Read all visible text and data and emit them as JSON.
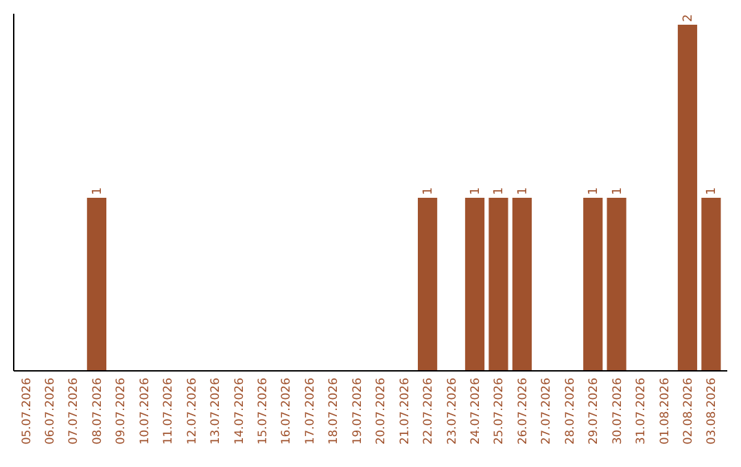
{
  "chart_data": {
    "type": "bar",
    "categories": [
      "05.07.2026",
      "06.07.2026",
      "07.07.2026",
      "08.07.2026",
      "09.07.2026",
      "10.07.2026",
      "11.07.2026",
      "12.07.2026",
      "13.07.2026",
      "14.07.2026",
      "15.07.2026",
      "16.07.2026",
      "17.07.2026",
      "18.07.2026",
      "19.07.2026",
      "20.07.2026",
      "21.07.2026",
      "22.07.2026",
      "23.07.2026",
      "24.07.2026",
      "25.07.2026",
      "26.07.2026",
      "27.07.2026",
      "28.07.2026",
      "29.07.2026",
      "30.07.2026",
      "31.07.2026",
      "01.08.2026",
      "02.08.2026",
      "03.08.2026"
    ],
    "values": [
      0,
      0,
      0,
      1,
      0,
      0,
      0,
      0,
      0,
      0,
      0,
      0,
      0,
      0,
      0,
      0,
      0,
      1,
      0,
      1,
      1,
      1,
      0,
      0,
      1,
      1,
      0,
      0,
      2,
      1
    ],
    "value_labels": [
      null,
      null,
      null,
      "1",
      null,
      null,
      null,
      null,
      null,
      null,
      null,
      null,
      null,
      null,
      null,
      null,
      null,
      "1",
      null,
      "1",
      "1",
      "1",
      null,
      null,
      "1",
      "1",
      null,
      null,
      "2",
      "1"
    ],
    "color": "#a0522d",
    "ylim": [
      0,
      2
    ],
    "tick_labels": "x"
  }
}
